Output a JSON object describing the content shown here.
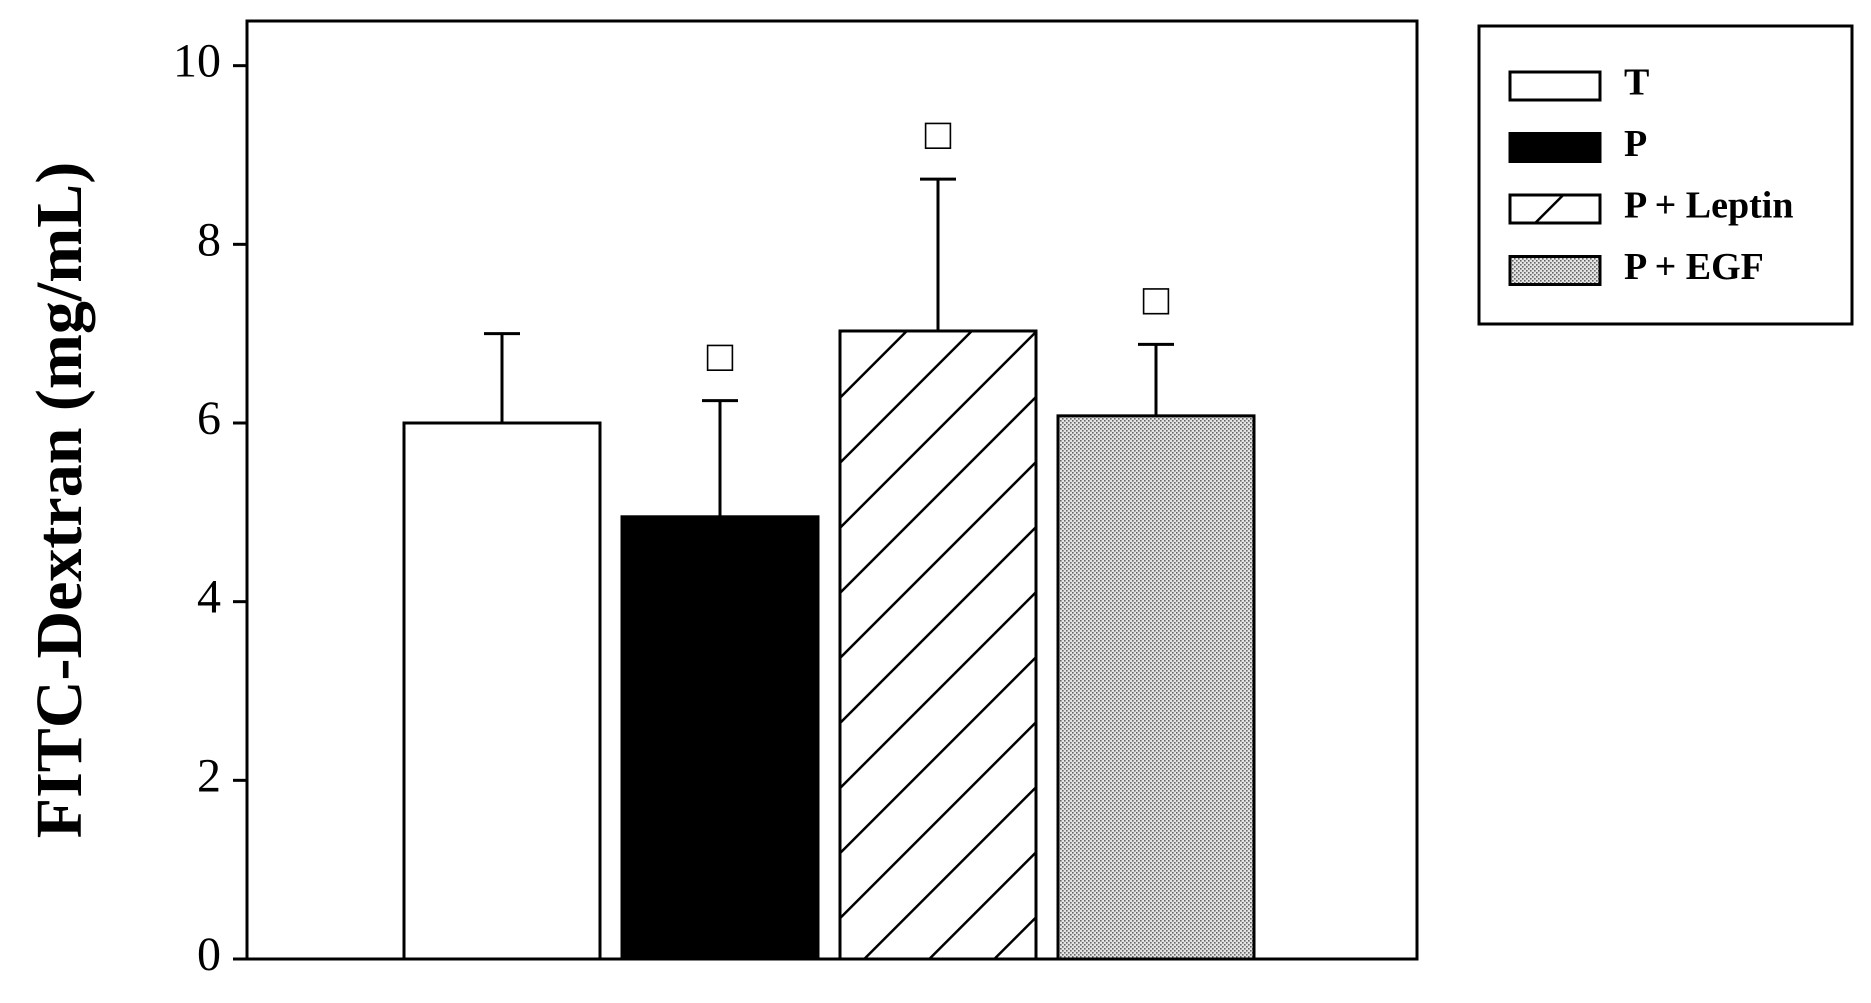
{
  "chart_data": {
    "type": "bar",
    "y_label": "FITC-Dextran (mg/mL)",
    "ylim": [
      0,
      10.5
    ],
    "yticks": [
      0,
      2,
      4,
      6,
      8,
      10
    ],
    "series": [
      {
        "name": "T",
        "color": "#ffffff",
        "pattern": "solid",
        "values": [
          6.0
        ],
        "errors": [
          1.0
        ]
      },
      {
        "name": "P",
        "color": "#000000",
        "pattern": "solid",
        "values": [
          4.95
        ],
        "errors": [
          1.3
        ],
        "annotation": "□"
      },
      {
        "name": "P + Leptin",
        "color": "#000000",
        "pattern": "hatch",
        "values": [
          7.03
        ],
        "errors": [
          1.7
        ],
        "annotation": "□"
      },
      {
        "name": "P + EGF",
        "color": "#888888",
        "pattern": "dots",
        "values": [
          6.08
        ],
        "errors": [
          0.8
        ],
        "annotation": "□"
      }
    ],
    "legend": "top-right"
  }
}
